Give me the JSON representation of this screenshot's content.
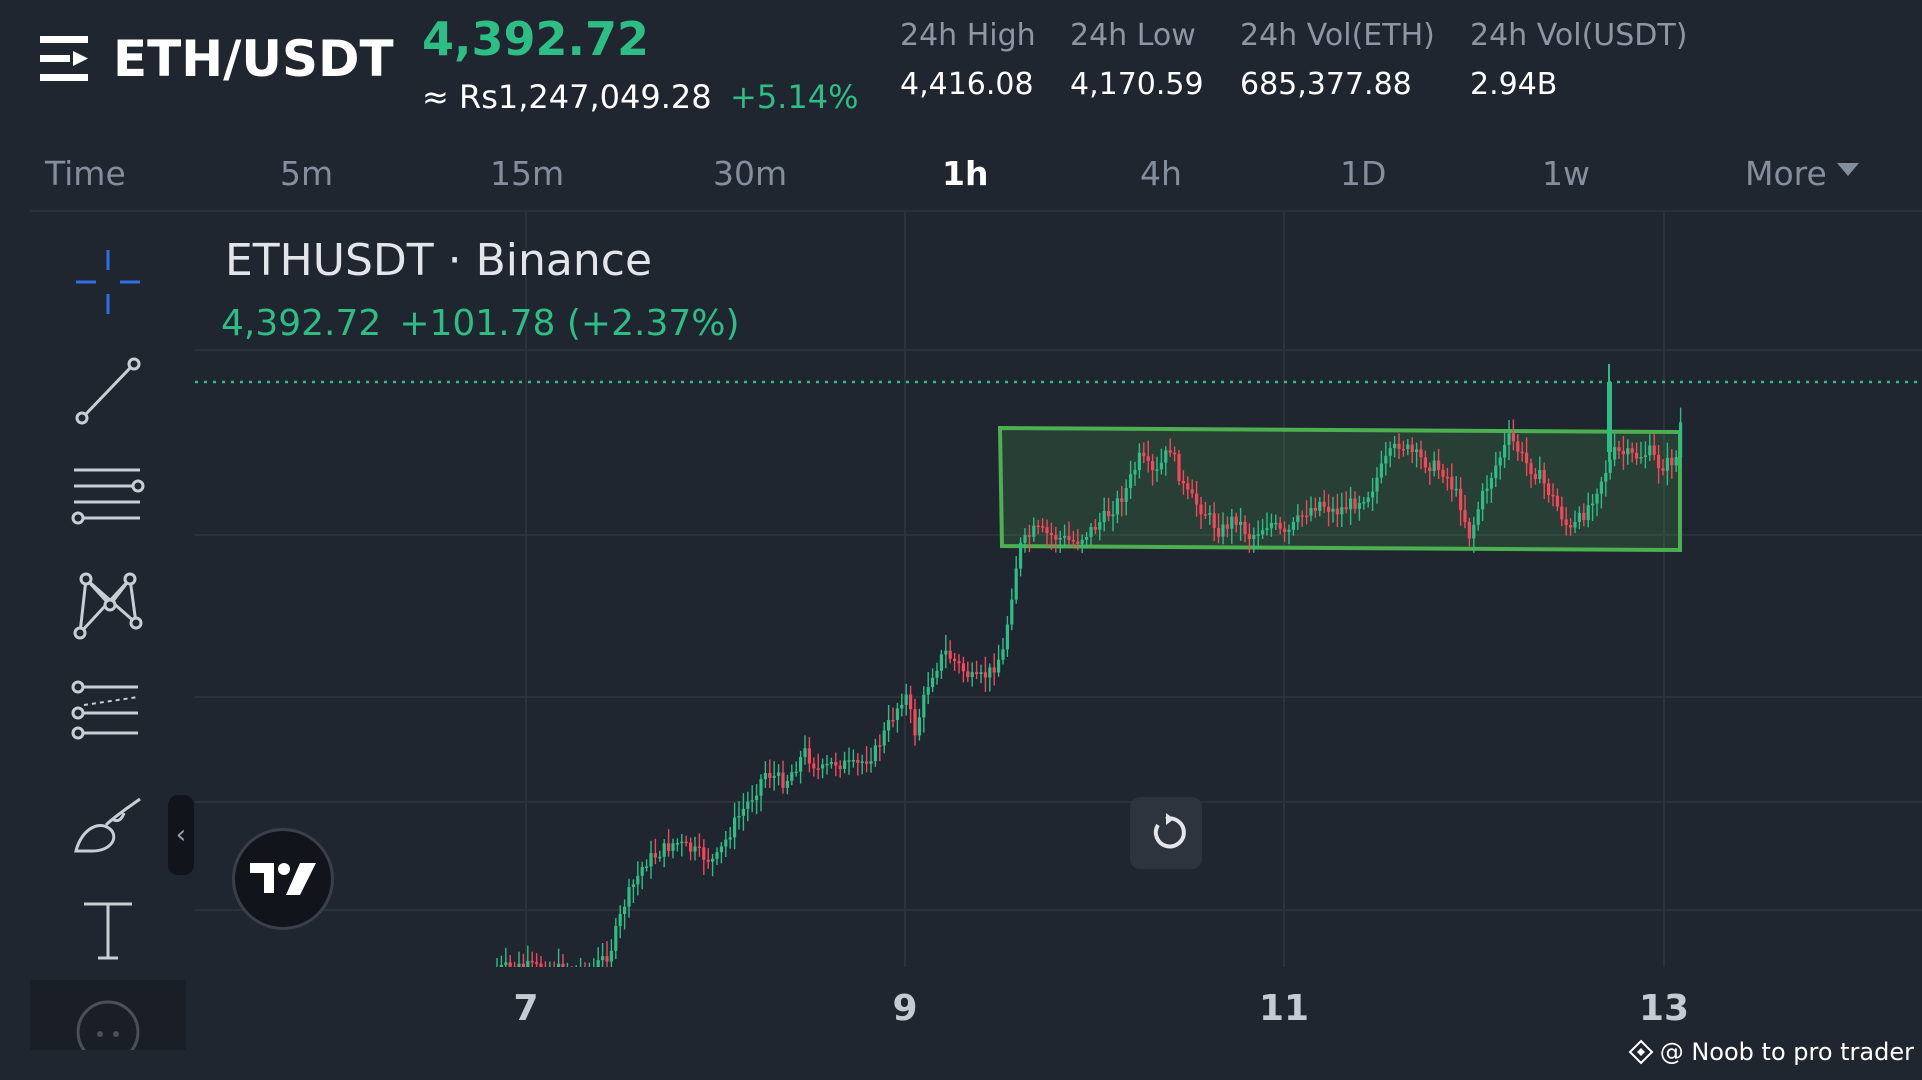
{
  "header": {
    "pair": "ETH/USDT",
    "last_price": "4,392.72",
    "fiat_price": "≈ Rs1,247,049.28",
    "change_pct": "+5.14%",
    "stats": [
      {
        "label": "24h High",
        "value": "4,416.08"
      },
      {
        "label": "24h Low",
        "value": "4,170.59"
      },
      {
        "label": "24h Vol(ETH)",
        "value": "685,377.88"
      },
      {
        "label": "24h Vol(USDT)",
        "value": "2.94B"
      }
    ]
  },
  "tabs": [
    "Time",
    "5m",
    "15m",
    "30m",
    "1h",
    "4h",
    "1D",
    "1w",
    "More"
  ],
  "active_tab": "1h",
  "toolbar": {
    "items": [
      "crosshair-icon",
      "trend-line-icon",
      "horizontal-lines-icon",
      "pattern-icon",
      "fib-icon",
      "brush-icon",
      "text-icon"
    ],
    "collapse_symbol": "‹"
  },
  "chart": {
    "symbol_title": "ETHUSDT · Binance",
    "quote_price": "4,392.72",
    "quote_change": "+101.78 (+2.37%)",
    "x_ticks": [
      "7",
      "9",
      "11",
      "13"
    ],
    "watermark": "@ Noob to pro trader",
    "colors": {
      "up": "#2ebd85",
      "down": "#f6465d",
      "box": "#4caf50",
      "grid": "#2c323c"
    }
  },
  "chart_data": {
    "type": "candlestick",
    "interval": "1h",
    "x_axis": "day of month",
    "last_price": 4392.72,
    "x_ticks": [
      "7",
      "9",
      "11",
      "13"
    ],
    "annotation": "consolidation rectangle from day 9.5 to 13.1",
    "trend": "strong rally from day 7.5 to 9.5, then sideways range, breakout spike near day 12.7"
  }
}
